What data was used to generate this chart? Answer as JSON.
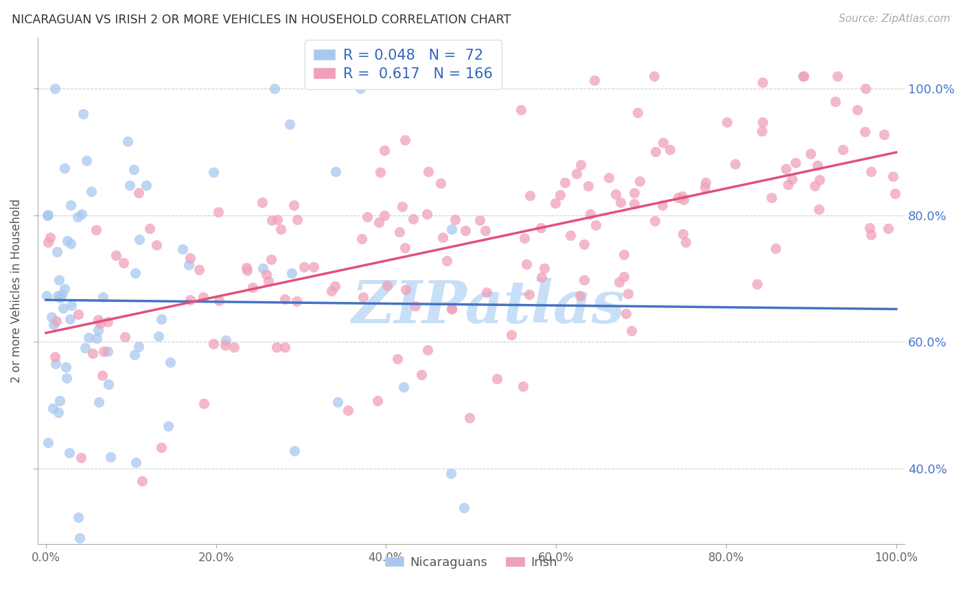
{
  "title": "NICARAGUAN VS IRISH 2 OR MORE VEHICLES IN HOUSEHOLD CORRELATION CHART",
  "source": "Source: ZipAtlas.com",
  "ylabel": "2 or more Vehicles in Household",
  "xlim": [
    -1,
    101
  ],
  "ylim": [
    28,
    108
  ],
  "ytick_vals": [
    40,
    60,
    80,
    100
  ],
  "ytick_labels_right": [
    "40.0%",
    "60.0%",
    "80.0%",
    "100.0%"
  ],
  "xtick_vals": [
    0,
    20,
    40,
    60,
    80,
    100
  ],
  "xtick_labels": [
    "0.0%",
    "20.0%",
    "40.0%",
    "60.0%",
    "80.0%",
    "100.0%"
  ],
  "nicaraguan_color": "#a8c8f0",
  "irish_color": "#f0a0b8",
  "nicaraguan_line_color": "#4472c4",
  "irish_line_color": "#e0507a",
  "nicaraguan_R": 0.048,
  "nicaraguan_N": 72,
  "irish_R": 0.617,
  "irish_N": 166,
  "background_color": "#ffffff",
  "grid_color": "#d0d0d0",
  "watermark": "ZIPatlas",
  "watermark_color": "#c8dff8",
  "title_color": "#333333",
  "source_color": "#aaaaaa",
  "right_tick_color": "#4477cc",
  "legend_text_color": "#3366bb"
}
